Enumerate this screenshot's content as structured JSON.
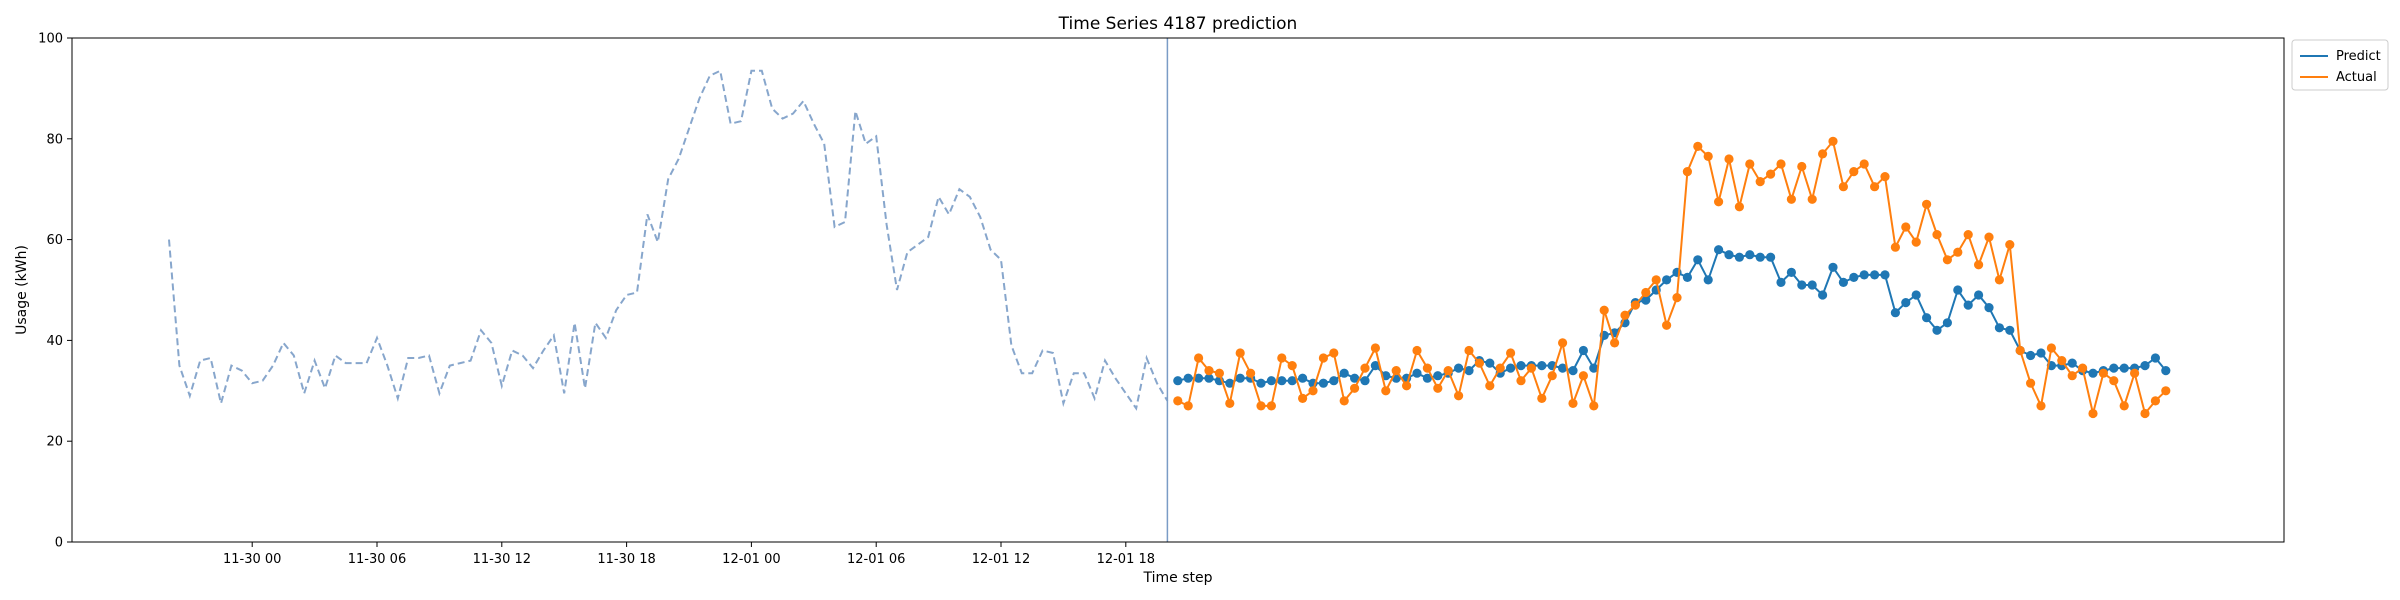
{
  "chart_data": {
    "type": "line",
    "title": "Time Series 4187 prediction",
    "xlabel": "Time step",
    "ylabel": "Usage (kWh)",
    "ylim": [
      0,
      100
    ],
    "yticks": [
      0,
      20,
      40,
      60,
      80,
      100
    ],
    "xticks": [
      "11-30 00",
      "11-30 06",
      "11-30 12",
      "11-30 18",
      "12-01 00",
      "12-01 06",
      "12-01 12",
      "12-01 18"
    ],
    "x_start": "11-29 20:00",
    "x_step_minutes": 30,
    "forecast_start": "11-30 20:30",
    "grid": false,
    "legend_position": "outside top-right",
    "colors": {
      "predict": "#1f77b4",
      "actual": "#ff7f0e",
      "history": "#7a9cc6",
      "divider": "#7a9cc6"
    },
    "history": {
      "style": "dashed",
      "values": [
        60,
        35,
        29,
        36,
        36.5,
        27.5,
        35,
        34,
        31.5,
        32,
        35,
        39.5,
        37,
        29.5,
        36,
        30.5,
        37,
        35.5,
        35.5,
        35.5,
        40.5,
        35,
        28.5,
        36.5,
        36.5,
        37,
        29.5,
        35,
        35.5,
        36,
        42,
        39.5,
        31,
        38,
        37,
        34.5,
        38,
        41,
        29.5,
        43.5,
        30.5,
        43.5,
        40.5,
        46,
        49,
        49.5,
        65,
        59.5,
        72,
        76,
        82,
        88,
        92.5,
        93.5,
        83,
        83.5,
        93.5,
        93.5,
        86,
        84,
        85,
        87.5,
        83,
        79,
        62.5,
        63.5,
        85.5,
        79,
        80.5,
        63,
        50,
        57.5,
        59,
        60.5,
        68.5,
        65,
        70,
        68.5,
        64.5,
        58,
        56,
        39,
        33.5,
        33.5,
        38,
        37.5,
        27.5,
        33.5,
        33.5,
        28.5,
        36,
        32.5,
        29.5,
        26.5,
        36.5,
        31.5,
        28
      ]
    },
    "series": [
      {
        "name": "Predict",
        "values": [
          32,
          32.5,
          32.5,
          32.5,
          32,
          31.5,
          32.5,
          32.5,
          31.5,
          32,
          32,
          32,
          32.5,
          31.5,
          31.5,
          32,
          33.5,
          32.5,
          32,
          35,
          33,
          32.5,
          32.5,
          33.5,
          32.5,
          33,
          33.5,
          34.5,
          34,
          36,
          35.5,
          33.5,
          34.5,
          35,
          35,
          35,
          35,
          34.5,
          34,
          38,
          34.5,
          41,
          41.5,
          43.5,
          47.5,
          48,
          50,
          52,
          53.5,
          52.5,
          56,
          52,
          58,
          57,
          56.5,
          57,
          56.5,
          56.5,
          51.5,
          53.5,
          51,
          51,
          49,
          54.5,
          51.5,
          52.5,
          53,
          53,
          53,
          45.5,
          47.5,
          49,
          44.5,
          42,
          43.5,
          50,
          47,
          49,
          46.5,
          42.5,
          42,
          38,
          37,
          37.5,
          35,
          35,
          35.5,
          34,
          33.5,
          34,
          34.5,
          34.5,
          34.5,
          35,
          36.5,
          34
        ]
      },
      {
        "name": "Actual",
        "values": [
          28,
          27,
          36.5,
          34,
          33.5,
          27.5,
          37.5,
          33.5,
          27,
          27,
          36.5,
          35,
          28.5,
          30,
          36.5,
          37.5,
          28,
          30.5,
          34.5,
          38.5,
          30,
          34,
          31,
          38,
          34.5,
          30.5,
          34,
          29,
          38,
          35.5,
          31,
          34.5,
          37.5,
          32,
          34.5,
          28.5,
          33,
          39.5,
          27.5,
          33,
          27,
          46,
          39.5,
          45,
          47,
          49.5,
          52,
          43,
          48.5,
          73.5,
          78.5,
          76.5,
          67.5,
          76,
          66.5,
          75,
          71.5,
          73,
          75,
          68,
          74.5,
          68,
          77,
          79.5,
          70.5,
          73.5,
          75,
          70.5,
          72.5,
          58.5,
          62.5,
          59.5,
          67,
          61,
          56,
          57.5,
          61,
          55,
          60.5,
          52,
          59,
          38,
          31.5,
          27,
          38.5,
          36,
          33,
          34.5,
          25.5,
          33.5,
          32,
          27,
          33.5,
          25.5,
          28,
          30
        ]
      }
    ]
  }
}
